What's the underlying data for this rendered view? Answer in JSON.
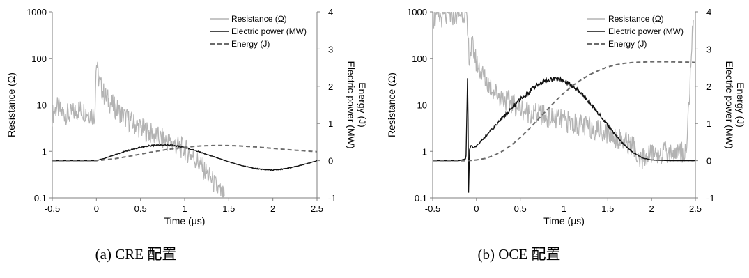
{
  "chart_data": [
    {
      "type": "line",
      "caption": "(a) CRE 配置",
      "xlabel": "Time (μs)",
      "ylabel_left": "Resistance (Ω)",
      "ylabel_right": [
        "Electric power (MW)",
        "Energy (J)"
      ],
      "xlim": [
        -0.5,
        2.5
      ],
      "ylim_left": [
        0.1,
        1000
      ],
      "yscale_left": "log",
      "ylim_right": [
        -1,
        4
      ],
      "xticks": [
        "-0.5",
        "0",
        "0.5",
        "1",
        "1.5",
        "2",
        "2.5"
      ],
      "yticks_left": [
        "0.1",
        "1",
        "10",
        "100",
        "1000"
      ],
      "yticks_right": [
        "-1",
        "0",
        "1",
        "2",
        "3",
        "4"
      ],
      "legend": [
        "Resistance (Ω)",
        "Electric power (MW)",
        "Energy (J)"
      ],
      "legend_position": "top-right",
      "series": [
        {
          "name": "Resistance (Ω)",
          "axis": "left",
          "color": "#b3b3b3",
          "x": [
            -0.5,
            -0.45,
            -0.4,
            -0.3,
            -0.2,
            -0.1,
            -0.02,
            0,
            0.02,
            0.05,
            0.1,
            0.2,
            0.3,
            0.4,
            0.5,
            0.6,
            0.7,
            0.8,
            0.9,
            1.0,
            1.1,
            1.2,
            1.3,
            1.4,
            1.45
          ],
          "y": [
            6,
            9,
            7,
            6,
            8,
            7,
            6,
            90,
            40,
            25,
            15,
            9,
            6,
            4.2,
            3.2,
            2.5,
            2,
            1.65,
            1.35,
            1.1,
            0.75,
            0.45,
            0.25,
            0.13,
            0.1
          ]
        },
        {
          "name": "Electric power (MW)",
          "axis": "right",
          "color": "#111111",
          "x": [
            -0.5,
            -0.1,
            0,
            0.1,
            0.2,
            0.3,
            0.4,
            0.5,
            0.6,
            0.7,
            0.8,
            0.9,
            1.0,
            1.1,
            1.2,
            1.3,
            1.4,
            1.5,
            1.6,
            1.7,
            1.8,
            1.9,
            2.0,
            2.1,
            2.2,
            2.3,
            2.4,
            2.5
          ],
          "y": [
            0,
            0,
            0,
            0.07,
            0.15,
            0.23,
            0.3,
            0.36,
            0.4,
            0.42,
            0.42,
            0.4,
            0.35,
            0.29,
            0.21,
            0.13,
            0.05,
            -0.03,
            -0.1,
            -0.16,
            -0.21,
            -0.24,
            -0.25,
            -0.23,
            -0.19,
            -0.13,
            -0.07,
            0.0
          ]
        },
        {
          "name": "Energy (J)",
          "axis": "right",
          "color": "#6b6b6b",
          "dashed": true,
          "x": [
            -0.5,
            0,
            0.2,
            0.4,
            0.6,
            0.8,
            1.0,
            1.2,
            1.4,
            1.6,
            1.8,
            2.0,
            2.2,
            2.5
          ],
          "y": [
            0,
            0,
            0.05,
            0.13,
            0.22,
            0.3,
            0.36,
            0.4,
            0.41,
            0.4,
            0.37,
            0.33,
            0.29,
            0.24
          ]
        }
      ]
    },
    {
      "type": "line",
      "caption": "(b) OCE 配置",
      "xlabel": "Time (μs)",
      "ylabel_left": "Resistance (Ω)",
      "ylabel_right": [
        "Electric power (MW)",
        "Energy (J)"
      ],
      "xlim": [
        -0.5,
        2.5
      ],
      "ylim_left": [
        0.1,
        1000
      ],
      "yscale_left": "log",
      "ylim_right": [
        -1,
        4
      ],
      "xticks": [
        "-0.5",
        "0",
        "0.5",
        "1",
        "1.5",
        "2",
        "2.5"
      ],
      "yticks_left": [
        "0.1",
        "1",
        "10",
        "100",
        "1000"
      ],
      "yticks_right": [
        "-1",
        "0",
        "1",
        "2",
        "3",
        "4"
      ],
      "legend": [
        "Resistance (Ω)",
        "Electric power (MW)",
        "Energy (J)"
      ],
      "legend_position": "top-right",
      "series": [
        {
          "name": "Resistance (Ω)",
          "axis": "left",
          "color": "#b3b3b3",
          "x": [
            -0.5,
            -0.35,
            -0.2,
            -0.15,
            -0.12,
            -0.1,
            -0.08,
            -0.05,
            0,
            0.1,
            0.2,
            0.3,
            0.4,
            0.5,
            0.6,
            0.8,
            1.0,
            1.2,
            1.4,
            1.5,
            1.6,
            1.7,
            1.8,
            1.85,
            1.9,
            2.0,
            2.4,
            2.45,
            2.48
          ],
          "y": [
            700,
            800,
            900,
            1000,
            1000,
            300,
            100,
            200,
            80,
            35,
            20,
            14,
            11,
            8.5,
            7,
            5.5,
            4.5,
            3.6,
            2.9,
            2.5,
            2,
            1.6,
            1.3,
            0.5,
            0.7,
            0.9,
            1,
            100,
            800
          ]
        },
        {
          "name": "Electric power (MW)",
          "axis": "right",
          "color": "#111111",
          "x": [
            -0.5,
            -0.2,
            -0.12,
            -0.1,
            -0.09,
            -0.08,
            -0.06,
            -0.03,
            0,
            0.1,
            0.2,
            0.3,
            0.4,
            0.5,
            0.6,
            0.7,
            0.8,
            0.9,
            1.0,
            1.1,
            1.2,
            1.3,
            1.4,
            1.5,
            1.6,
            1.7,
            1.8,
            1.9,
            2.0,
            2.2,
            2.4,
            2.5
          ],
          "y": [
            0,
            0,
            0.05,
            2.4,
            -1,
            0.3,
            0.4,
            0.35,
            0.4,
            0.65,
            0.9,
            1.15,
            1.4,
            1.65,
            1.85,
            2.05,
            2.15,
            2.2,
            2.15,
            2.0,
            1.8,
            1.55,
            1.25,
            0.95,
            0.65,
            0.4,
            0.2,
            0.07,
            0.02,
            0.0,
            0.0,
            0.0
          ]
        },
        {
          "name": "Energy (J)",
          "axis": "right",
          "color": "#6b6b6b",
          "dashed": true,
          "x": [
            -0.5,
            -0.1,
            0,
            0.1,
            0.2,
            0.3,
            0.4,
            0.5,
            0.6,
            0.7,
            0.8,
            0.9,
            1.0,
            1.1,
            1.2,
            1.3,
            1.4,
            1.5,
            1.6,
            1.7,
            1.8,
            1.9,
            2.0,
            2.1,
            2.2,
            2.3,
            2.4,
            2.5
          ],
          "y": [
            0,
            0,
            0.02,
            0.06,
            0.14,
            0.26,
            0.42,
            0.62,
            0.85,
            1.1,
            1.35,
            1.6,
            1.82,
            2.02,
            2.18,
            2.32,
            2.43,
            2.52,
            2.58,
            2.62,
            2.64,
            2.65,
            2.66,
            2.66,
            2.66,
            2.65,
            2.65,
            2.64
          ]
        }
      ]
    }
  ]
}
